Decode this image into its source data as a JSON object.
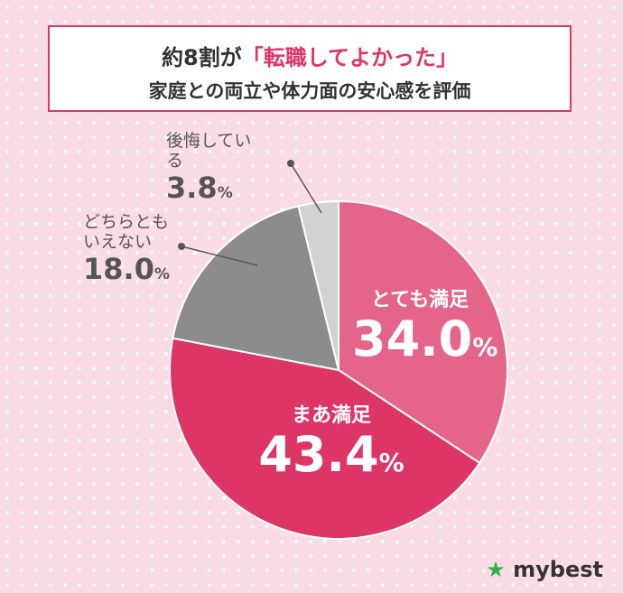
{
  "chart_data": {
    "type": "pie",
    "title_prefix": "約8割が",
    "title_highlight": "「転職してよかった」",
    "subtitle": "家庭との両立や体力面の安心感を評価",
    "categories": [
      "とても満足",
      "まあ満足",
      "どちらともいえない",
      "後悔している"
    ],
    "values": [
      34.0,
      43.4,
      18.0,
      3.8
    ],
    "value_labels": [
      "34.0",
      "43.4",
      "18.0",
      "3.8"
    ],
    "unit_label": "%",
    "colors": [
      "#e5648a",
      "#dd3566",
      "#8c8c8c",
      "#d2d2d2"
    ],
    "brand": "mybest"
  }
}
